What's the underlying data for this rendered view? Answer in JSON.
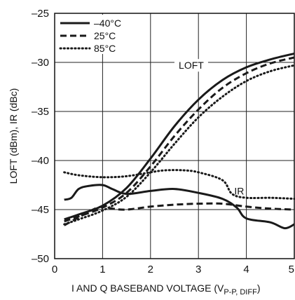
{
  "chart_data": {
    "type": "line",
    "title": "",
    "xlabel": "I AND Q BASEBAND VOLTAGE (V",
    "xlabel_sub": "P-P, DIFF",
    "xlabel_close": ")",
    "ylabel": "LOFT (dBm), IR (dBc)",
    "xlim": [
      0,
      5
    ],
    "ylim": [
      -50,
      -25
    ],
    "xticks": [
      0,
      1,
      2,
      3,
      4,
      5
    ],
    "yticks": [
      -25,
      -30,
      -35,
      -40,
      -45,
      -50
    ],
    "xtick_labels": [
      "0",
      "1",
      "2",
      "3",
      "4",
      "5"
    ],
    "ytick_labels": [
      "–25",
      "–30",
      "–35",
      "–40",
      "–45",
      "–50"
    ],
    "grid": true,
    "legend_placement": "top-left",
    "legend": [
      {
        "label": "–40°C",
        "style": "solid"
      },
      {
        "label": "25°C",
        "style": "dashed"
      },
      {
        "label": "85°C",
        "style": "dotted"
      }
    ],
    "annotations": [
      {
        "text": "LOFT",
        "x": 2.85,
        "y": -30.3
      },
      {
        "text": "IR",
        "x": 3.85,
        "y": -43.1
      }
    ],
    "series": [
      {
        "curve": "LOFT",
        "style": "solid",
        "color": "#1a1a1a",
        "x": [
          0.2,
          0.5,
          1.0,
          1.5,
          2.0,
          2.5,
          3.0,
          3.5,
          4.0,
          4.5,
          5.0
        ],
        "y": [
          -46.0,
          -45.5,
          -44.6,
          -42.8,
          -39.8,
          -36.5,
          -33.8,
          -31.8,
          -30.5,
          -29.7,
          -29.1
        ]
      },
      {
        "curve": "LOFT",
        "style": "dashed",
        "color": "#1a1a1a",
        "x": [
          0.2,
          0.5,
          1.0,
          1.5,
          2.0,
          2.5,
          3.0,
          3.5,
          4.0,
          4.5,
          5.0
        ],
        "y": [
          -46.2,
          -45.7,
          -44.8,
          -43.3,
          -40.6,
          -37.5,
          -34.8,
          -32.6,
          -31.1,
          -30.1,
          -29.5
        ]
      },
      {
        "curve": "LOFT",
        "style": "dotted",
        "color": "#1a1a1a",
        "x": [
          0.2,
          0.5,
          1.0,
          1.5,
          2.0,
          2.5,
          3.0,
          3.5,
          4.0,
          4.5,
          5.0
        ],
        "y": [
          -46.5,
          -46.0,
          -45.1,
          -43.7,
          -41.2,
          -38.3,
          -35.6,
          -33.5,
          -31.9,
          -30.9,
          -30.3
        ]
      },
      {
        "curve": "IR",
        "style": "solid",
        "color": "#1a1a1a",
        "x": [
          0.2,
          0.35,
          0.5,
          0.7,
          1.0,
          1.2,
          1.5,
          2.0,
          2.5,
          3.0,
          3.5,
          3.8,
          4.0,
          4.5,
          4.8,
          5.0
        ],
        "y": [
          -44.0,
          -43.8,
          -42.9,
          -42.6,
          -42.5,
          -42.9,
          -43.4,
          -43.1,
          -42.9,
          -43.3,
          -43.9,
          -44.8,
          -45.9,
          -46.3,
          -46.9,
          -46.5
        ]
      },
      {
        "curve": "IR",
        "style": "dashed",
        "color": "#1a1a1a",
        "x": [
          0.2,
          0.5,
          0.8,
          1.0,
          1.2,
          1.5,
          2.0,
          2.5,
          3.0,
          3.5,
          4.0,
          4.5,
          5.0
        ],
        "y": [
          -46.6,
          -45.8,
          -45.0,
          -44.7,
          -44.9,
          -45.0,
          -44.7,
          -44.5,
          -44.4,
          -44.4,
          -44.7,
          -44.9,
          -45.0
        ]
      },
      {
        "curve": "IR",
        "style": "dotted",
        "color": "#1a1a1a",
        "x": [
          0.2,
          0.5,
          1.0,
          1.5,
          2.0,
          2.3,
          2.7,
          3.0,
          3.5,
          3.7,
          4.0,
          4.5,
          5.0
        ],
        "y": [
          -41.2,
          -41.5,
          -41.7,
          -41.6,
          -41.2,
          -41.0,
          -41.0,
          -41.2,
          -42.0,
          -43.4,
          -43.8,
          -43.8,
          -43.9
        ]
      }
    ]
  }
}
